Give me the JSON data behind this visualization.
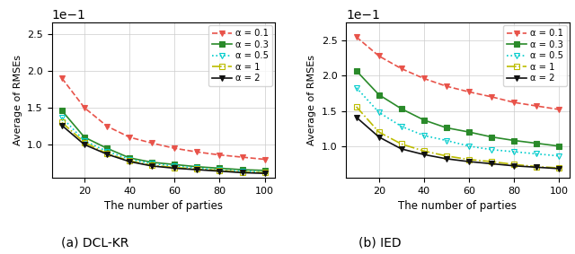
{
  "x": [
    10,
    20,
    30,
    40,
    50,
    60,
    70,
    80,
    90,
    100
  ],
  "dcl_kr": {
    "alpha_0.1": [
      0.19,
      0.15,
      0.125,
      0.11,
      0.102,
      0.095,
      0.09,
      0.086,
      0.083,
      0.08
    ],
    "alpha_0.3": [
      0.146,
      0.11,
      0.095,
      0.082,
      0.076,
      0.073,
      0.07,
      0.068,
      0.066,
      0.065
    ],
    "alpha_0.5": [
      0.137,
      0.105,
      0.091,
      0.08,
      0.074,
      0.071,
      0.068,
      0.066,
      0.064,
      0.063
    ],
    "alpha_1": [
      0.13,
      0.103,
      0.088,
      0.078,
      0.072,
      0.069,
      0.067,
      0.065,
      0.063,
      0.062
    ],
    "alpha_2": [
      0.126,
      0.1,
      0.087,
      0.077,
      0.071,
      0.068,
      0.066,
      0.064,
      0.062,
      0.061
    ]
  },
  "ied": {
    "alpha_0.1": [
      0.255,
      0.228,
      0.21,
      0.196,
      0.185,
      0.177,
      0.17,
      0.162,
      0.157,
      0.152
    ],
    "alpha_0.3": [
      0.207,
      0.173,
      0.153,
      0.137,
      0.126,
      0.12,
      0.113,
      0.108,
      0.104,
      0.1
    ],
    "alpha_0.5": [
      0.183,
      0.148,
      0.128,
      0.115,
      0.108,
      0.1,
      0.095,
      0.092,
      0.089,
      0.086
    ],
    "alpha_1": [
      0.156,
      0.12,
      0.103,
      0.093,
      0.086,
      0.081,
      0.078,
      0.074,
      0.071,
      0.069
    ],
    "alpha_2": [
      0.141,
      0.113,
      0.096,
      0.088,
      0.082,
      0.078,
      0.075,
      0.072,
      0.07,
      0.068
    ]
  },
  "colors": {
    "alpha_0.1": "#e8534a",
    "alpha_0.3": "#2a8a2a",
    "alpha_0.5": "#00cccc",
    "alpha_1": "#bcbc00",
    "alpha_2": "#111111"
  },
  "linestyles": {
    "alpha_0.1": "--",
    "alpha_0.3": "-",
    "alpha_0.5": ":",
    "alpha_1": "-.",
    "alpha_2": "-"
  },
  "markers": {
    "alpha_0.1": "v",
    "alpha_0.3": "s",
    "alpha_0.5": "v",
    "alpha_1": "s",
    "alpha_2": "v"
  },
  "marker_fill": {
    "alpha_0.1": "full",
    "alpha_0.3": "full",
    "alpha_0.5": "none",
    "alpha_1": "none",
    "alpha_2": "full"
  },
  "labels": {
    "alpha_0.1": "α = 0.1",
    "alpha_0.3": "α = 0.3",
    "alpha_0.5": "α = 0.5",
    "alpha_1": "α = 1",
    "alpha_2": "α = 2"
  },
  "xlabel": "The number of parties",
  "ylabel": "Average of RMSEs",
  "caption_left": "(a) DCL-KR",
  "caption_right": "(b) IED",
  "ylim_left": [
    0.055,
    0.265
  ],
  "ylim_right": [
    0.055,
    0.275
  ],
  "xticks": [
    20,
    40,
    60,
    80,
    100
  ]
}
